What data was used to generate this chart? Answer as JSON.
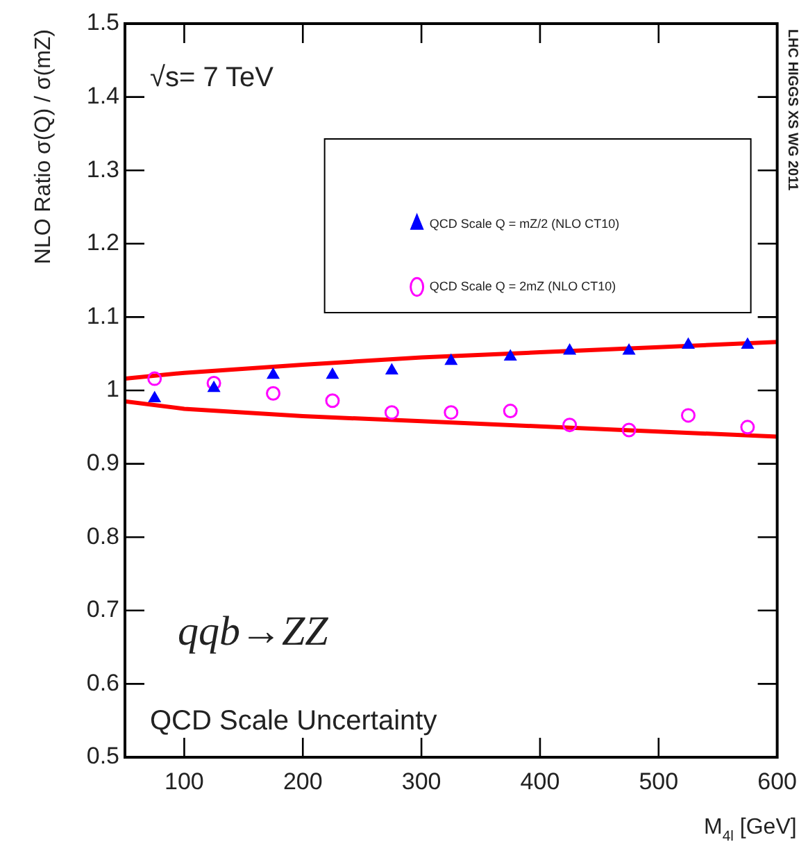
{
  "chart_data": {
    "type": "scatter",
    "xlabel": "M$_{4l}$ [GeV]",
    "ylabel": "NLO Ratio σ(Q) / σ(mZ)",
    "xlim": [
      50,
      600
    ],
    "xticks": [
      100,
      200,
      300,
      400,
      500,
      600
    ],
    "ylim": [
      0.5,
      1.5
    ],
    "yticks": [
      0.5,
      0.6,
      0.7,
      0.8,
      0.9,
      1,
      1.1,
      1.2,
      1.3,
      1.4,
      1.5
    ],
    "grid": false,
    "legend": "top right",
    "annotations": [
      "√s= 7 TeV",
      "qqb→ZZ",
      "QCD Scale Uncertainty",
      "LHC HIGGS XS WG 2011"
    ],
    "series": [
      {
        "name": "QCD Scale Q = mZ/2 (NLO CT10)",
        "type": "scatter",
        "marker": "triangle",
        "color": "#0000ff",
        "x": [
          75,
          125,
          175,
          225,
          275,
          325,
          375,
          425,
          475,
          525,
          575
        ],
        "values": [
          0.989,
          1.003,
          1.021,
          1.021,
          1.027,
          1.04,
          1.046,
          1.054,
          1.054,
          1.062,
          1.062
        ]
      },
      {
        "name": "QCD Scale Q = 2mZ (NLO CT10)",
        "type": "scatter",
        "marker": "circle",
        "color": "#ff00ff",
        "x": [
          75,
          125,
          175,
          225,
          275,
          325,
          375,
          425,
          475,
          525,
          575
        ],
        "values": [
          1.016,
          1.01,
          0.996,
          0.986,
          0.97,
          0.97,
          0.972,
          0.953,
          0.946,
          0.966,
          0.95
        ]
      },
      {
        "type": "line",
        "marker": "none",
        "color": "#ff0000",
        "x": [
          50,
          100,
          200,
          300,
          400,
          500,
          600
        ],
        "values": [
          1.016,
          1.024,
          1.035,
          1.045,
          1.052,
          1.059,
          1.066
        ]
      },
      {
        "type": "line",
        "marker": "none",
        "color": "#ff0000",
        "x": [
          50,
          100,
          200,
          300,
          400,
          500,
          600
        ],
        "values": [
          0.985,
          0.975,
          0.965,
          0.958,
          0.951,
          0.944,
          0.937
        ]
      }
    ]
  }
}
